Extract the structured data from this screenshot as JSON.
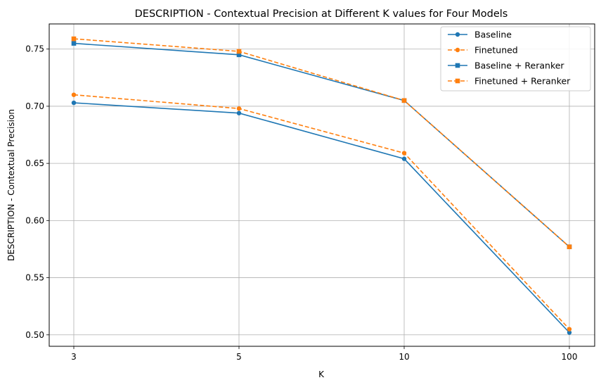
{
  "chart_data": {
    "type": "line",
    "title": "DESCRIPTION - Contextual Precision at Different K values for Four Models",
    "xlabel": "K",
    "ylabel": "DESCRIPTION - Contextual Precision",
    "categories": [
      "3",
      "5",
      "10",
      "100"
    ],
    "ylim": [
      0.49,
      0.772
    ],
    "yticks": [
      0.5,
      0.55,
      0.6,
      0.65,
      0.7,
      0.75
    ],
    "ytick_labels": [
      "0.50",
      "0.55",
      "0.60",
      "0.65",
      "0.70",
      "0.75"
    ],
    "grid": true,
    "legend_position": "top-right",
    "series": [
      {
        "name": "Baseline",
        "values": [
          0.703,
          0.694,
          0.654,
          0.502
        ],
        "color": "#1f77b4",
        "dash": "solid",
        "marker": "circle"
      },
      {
        "name": "Finetuned",
        "values": [
          0.71,
          0.698,
          0.659,
          0.505
        ],
        "color": "#ff7f0e",
        "dash": "dashed",
        "marker": "circle"
      },
      {
        "name": "Baseline + Reranker",
        "values": [
          0.755,
          0.745,
          0.705,
          0.577
        ],
        "color": "#1f77b4",
        "dash": "solid",
        "marker": "square"
      },
      {
        "name": "Finetuned + Reranker",
        "values": [
          0.759,
          0.748,
          0.705,
          0.577
        ],
        "color": "#ff7f0e",
        "dash": "dashed",
        "marker": "square"
      }
    ]
  }
}
